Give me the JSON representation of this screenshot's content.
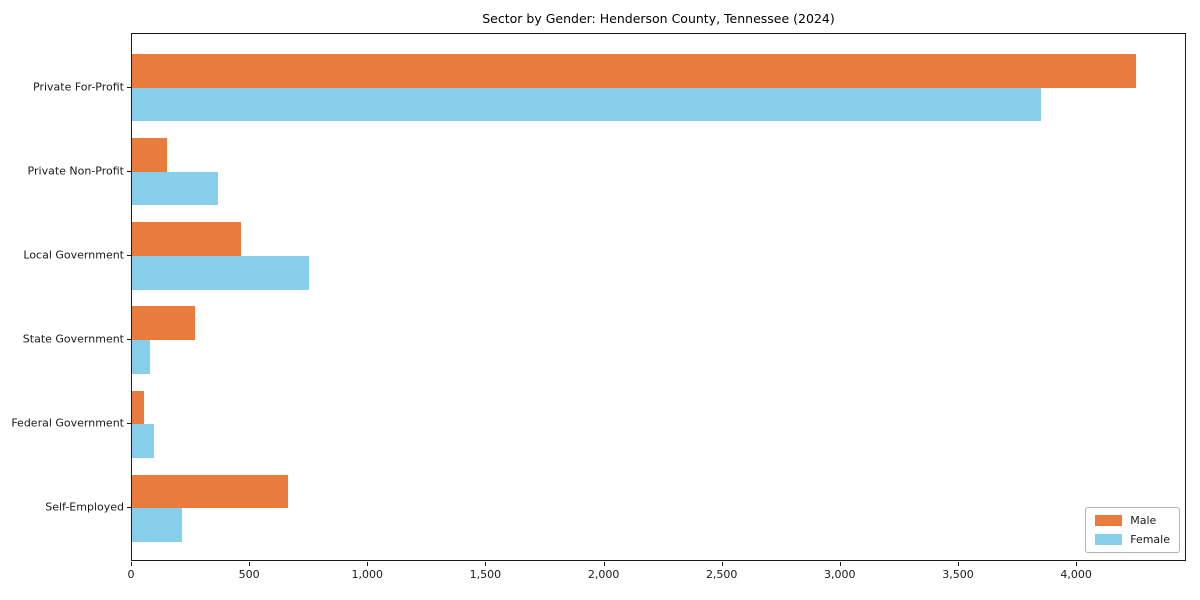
{
  "chart_data": {
    "type": "bar",
    "orientation": "horizontal",
    "title": "Sector by Gender: Henderson County, Tennessee (2024)",
    "categories": [
      "Private For-Profit",
      "Private Non-Profit",
      "Local Government",
      "State Government",
      "Federal Government",
      "Self-Employed"
    ],
    "series": [
      {
        "name": "Male",
        "color": "#e97c3d",
        "values": [
          4250,
          150,
          460,
          265,
          50,
          660
        ]
      },
      {
        "name": "Female",
        "color": "#87ceeb",
        "values": [
          3845,
          365,
          750,
          75,
          95,
          210
        ]
      }
    ],
    "xlabel": "",
    "ylabel": "",
    "xlim": [
      0,
      4465
    ],
    "xticks": [
      {
        "value": 0,
        "label": "0"
      },
      {
        "value": 500,
        "label": "500"
      },
      {
        "value": 1000,
        "label": "1,000"
      },
      {
        "value": 1500,
        "label": "1,500"
      },
      {
        "value": 2000,
        "label": "2,000"
      },
      {
        "value": 2500,
        "label": "2,500"
      },
      {
        "value": 3000,
        "label": "3,000"
      },
      {
        "value": 3500,
        "label": "3,500"
      },
      {
        "value": 4000,
        "label": "4,000"
      }
    ],
    "grid": false,
    "legend": {
      "position": "lower right",
      "entries": [
        "Male",
        "Female"
      ]
    }
  }
}
